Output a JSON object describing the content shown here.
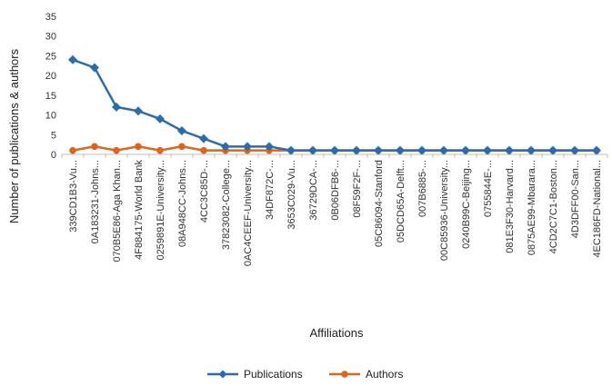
{
  "chart_data": {
    "type": "line",
    "title": "",
    "xlabel": "Affiliations",
    "ylabel": "Number of publications & authors",
    "ylim": [
      0,
      35
    ],
    "yticks": [
      0,
      5,
      10,
      15,
      20,
      25,
      30,
      35
    ],
    "grid": false,
    "legend_position": "bottom",
    "categories": [
      "339CD1B3-Vu...",
      "0A183231-Johns...",
      "070B5E86-Aga Khan...",
      "4F884175-World Bank",
      "0259891E-University...",
      "08A948CC-Johns...",
      "4CC3C85D-...",
      "37823082-College...",
      "0AC4CEEF-University...",
      "34DF872C-...",
      "3653C029-Vu...",
      "36729DCA-...",
      "0B06DFB6-...",
      "08F59F2F-...",
      "05C86094-Stanford",
      "05DCD65A-Delft...",
      "007B6885-...",
      "00C85936-University...",
      "0240B99C-Beijing...",
      "0755844E-...",
      "081E3F30-Harvard...",
      "0875AE99-Mbarara...",
      "4CD2C7C1-Boston...",
      "4D3DFF00-San...",
      "4EC186FD-National..."
    ],
    "series": [
      {
        "name": "Publications",
        "color": "#2e6ca8",
        "marker": "diamond",
        "values": [
          24,
          22,
          12,
          11,
          9,
          6,
          4,
          2,
          2,
          2,
          1,
          1,
          1,
          1,
          1,
          1,
          1,
          1,
          1,
          1,
          1,
          1,
          1,
          1,
          1
        ]
      },
      {
        "name": "Authors",
        "color": "#d8681c",
        "marker": "circle",
        "values": [
          1,
          2,
          1,
          2,
          1,
          2,
          1,
          1,
          1,
          1,
          1,
          1,
          1,
          1,
          1,
          1,
          1,
          1,
          1,
          1,
          1,
          1,
          1,
          1,
          1
        ]
      }
    ]
  }
}
